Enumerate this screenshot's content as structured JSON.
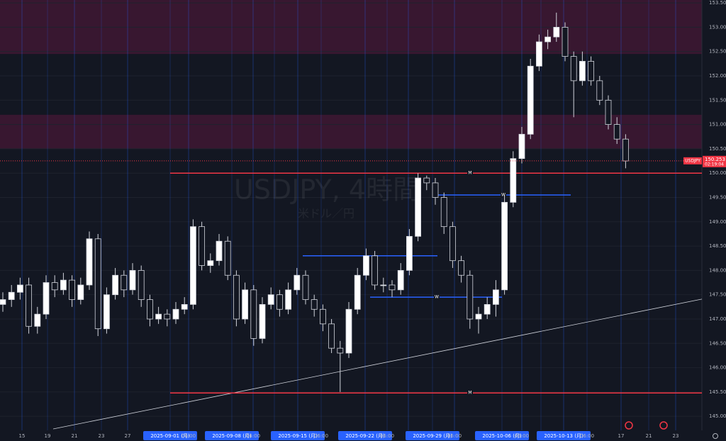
{
  "chart_data": {
    "type": "candlestick",
    "title": "USDJPY, 4時間",
    "subtitle": "米ドル／円",
    "symbol": "USDJPY",
    "last_price": 150.253,
    "countdown": "02:19:04",
    "ylim": [
      144.74,
      153.56
    ],
    "yticks": [
      {
        "value": 145.0,
        "label": "145.000"
      },
      {
        "value": 145.5,
        "label": "145.500"
      },
      {
        "value": 146.0,
        "label": "146.000"
      },
      {
        "value": 146.5,
        "label": "146.500"
      },
      {
        "value": 147.0,
        "label": "147.000"
      },
      {
        "value": 147.5,
        "label": "147.500"
      },
      {
        "value": 148.0,
        "label": "148.000"
      },
      {
        "value": 148.5,
        "label": "148.500"
      },
      {
        "value": 149.0,
        "label": "149.000"
      },
      {
        "value": 149.5,
        "label": "149.500"
      },
      {
        "value": 150.0,
        "label": "150.000"
      },
      {
        "value": 150.5,
        "label": "150.500"
      },
      {
        "value": 151.0,
        "label": "151.000"
      },
      {
        "value": 151.5,
        "label": "151.500"
      },
      {
        "value": 152.0,
        "label": "152.000"
      },
      {
        "value": 152.5,
        "label": "152.500"
      },
      {
        "value": 153.0,
        "label": "153.000"
      },
      {
        "value": 153.5,
        "label": "153.500"
      }
    ],
    "x_labels": [
      "15",
      "19",
      "21",
      "23",
      "27",
      "2025-09-01 (月)",
      "06:00",
      "2025-09-08 (月)",
      "06:00",
      "11",
      "2025-09-15 (月)",
      "06:00",
      "2025-09-22 (月)",
      "06:00",
      "25",
      "2025-09-29 (月)",
      "06:00",
      "2025-10-06 (月)",
      "06:00",
      "9",
      "2025-10-13 (月)",
      "06:00",
      "17",
      "21",
      "23"
    ],
    "zones": [
      [
        152.45,
        153.56
      ],
      [
        150.5,
        151.2
      ]
    ],
    "levels": [
      {
        "value": 150.0,
        "label": "M",
        "color": "#f23645"
      },
      {
        "value": 145.48,
        "label": "M",
        "color": "#f23645"
      },
      {
        "value": 149.55,
        "label": "W",
        "color": "#2962ff"
      },
      {
        "value": 148.3,
        "color": "#2962ff"
      },
      {
        "value": 147.45,
        "label": "W",
        "color": "#2962ff"
      }
    ],
    "trendline": [
      144.74,
      147.41
    ],
    "candles": [
      [
        147.3,
        147.55,
        147.15,
        147.4
      ],
      [
        147.4,
        147.7,
        147.25,
        147.55
      ],
      [
        147.55,
        147.85,
        147.4,
        147.7
      ],
      [
        147.7,
        147.85,
        146.7,
        146.85
      ],
      [
        146.85,
        147.25,
        146.7,
        147.1
      ],
      [
        147.1,
        147.9,
        147.0,
        147.75
      ],
      [
        147.75,
        147.9,
        147.45,
        147.6
      ],
      [
        147.6,
        147.95,
        147.5,
        147.8
      ],
      [
        147.8,
        147.9,
        147.25,
        147.4
      ],
      [
        147.4,
        147.85,
        147.3,
        147.7
      ],
      [
        147.7,
        148.8,
        147.6,
        148.65
      ],
      [
        148.65,
        148.75,
        146.65,
        146.8
      ],
      [
        146.8,
        147.65,
        146.7,
        147.5
      ],
      [
        147.5,
        148.05,
        147.4,
        147.9
      ],
      [
        147.9,
        148.0,
        147.45,
        147.6
      ],
      [
        147.6,
        148.15,
        147.5,
        148.0
      ],
      [
        148.0,
        148.1,
        147.25,
        147.4
      ],
      [
        147.4,
        147.5,
        146.85,
        147.0
      ],
      [
        147.0,
        147.25,
        146.9,
        147.1
      ],
      [
        147.1,
        147.2,
        146.85,
        147.0
      ],
      [
        147.0,
        147.35,
        146.9,
        147.2
      ],
      [
        147.2,
        147.45,
        147.1,
        147.3
      ],
      [
        147.3,
        149.05,
        147.2,
        148.9
      ],
      [
        148.9,
        149.0,
        148.0,
        148.1
      ],
      [
        148.1,
        148.35,
        147.95,
        148.2
      ],
      [
        148.2,
        148.75,
        148.1,
        148.6
      ],
      [
        148.6,
        148.7,
        147.8,
        147.9
      ],
      [
        147.9,
        148.0,
        146.85,
        147.0
      ],
      [
        147.0,
        147.75,
        146.9,
        147.6
      ],
      [
        147.6,
        147.7,
        146.45,
        146.6
      ],
      [
        146.6,
        147.45,
        146.5,
        147.3
      ],
      [
        147.3,
        147.65,
        147.2,
        147.5
      ],
      [
        147.5,
        147.6,
        147.05,
        147.2
      ],
      [
        147.2,
        147.75,
        147.1,
        147.6
      ],
      [
        147.6,
        148.05,
        147.5,
        147.9
      ],
      [
        147.9,
        148.0,
        147.3,
        147.4
      ],
      [
        147.4,
        147.5,
        147.05,
        147.2
      ],
      [
        147.2,
        147.3,
        146.75,
        146.9
      ],
      [
        146.9,
        147.0,
        146.3,
        146.4
      ],
      [
        146.4,
        146.55,
        145.5,
        146.3
      ],
      [
        146.3,
        147.35,
        146.2,
        147.2
      ],
      [
        147.2,
        148.05,
        147.1,
        147.9
      ],
      [
        147.9,
        148.45,
        147.8,
        148.3
      ],
      [
        148.3,
        148.4,
        147.6,
        147.7
      ],
      [
        147.7,
        147.85,
        147.55,
        147.7
      ],
      [
        147.7,
        147.8,
        147.45,
        147.6
      ],
      [
        147.6,
        148.15,
        147.5,
        148.0
      ],
      [
        148.0,
        148.85,
        147.9,
        148.7
      ],
      [
        148.7,
        150.0,
        148.6,
        149.9
      ],
      [
        149.9,
        149.95,
        149.65,
        149.8
      ],
      [
        149.8,
        149.9,
        149.35,
        149.5
      ],
      [
        149.5,
        149.6,
        148.75,
        148.9
      ],
      [
        148.9,
        149.0,
        148.05,
        148.2
      ],
      [
        148.2,
        148.3,
        147.75,
        147.9
      ],
      [
        147.9,
        148.0,
        146.8,
        147.0
      ],
      [
        147.0,
        147.25,
        146.7,
        147.1
      ],
      [
        147.1,
        147.45,
        147.0,
        147.3
      ],
      [
        147.3,
        147.8,
        147.05,
        147.6
      ],
      [
        147.6,
        149.55,
        147.5,
        149.4
      ],
      [
        149.4,
        150.45,
        149.3,
        150.3
      ],
      [
        150.3,
        150.95,
        150.2,
        150.8
      ],
      [
        150.8,
        152.35,
        150.7,
        152.2
      ],
      [
        152.2,
        152.85,
        152.1,
        152.7
      ],
      [
        152.7,
        152.95,
        152.55,
        152.8
      ],
      [
        152.8,
        153.3,
        152.7,
        153.0
      ],
      [
        153.0,
        153.1,
        152.3,
        152.4
      ],
      [
        152.4,
        152.5,
        151.15,
        151.9
      ],
      [
        151.9,
        152.5,
        151.8,
        152.3
      ],
      [
        152.3,
        152.4,
        151.8,
        151.9
      ],
      [
        151.9,
        152.0,
        151.4,
        151.5
      ],
      [
        151.5,
        151.6,
        150.9,
        151.0
      ],
      [
        151.0,
        151.15,
        150.6,
        150.7
      ],
      [
        150.7,
        150.8,
        150.1,
        150.25
      ]
    ]
  }
}
